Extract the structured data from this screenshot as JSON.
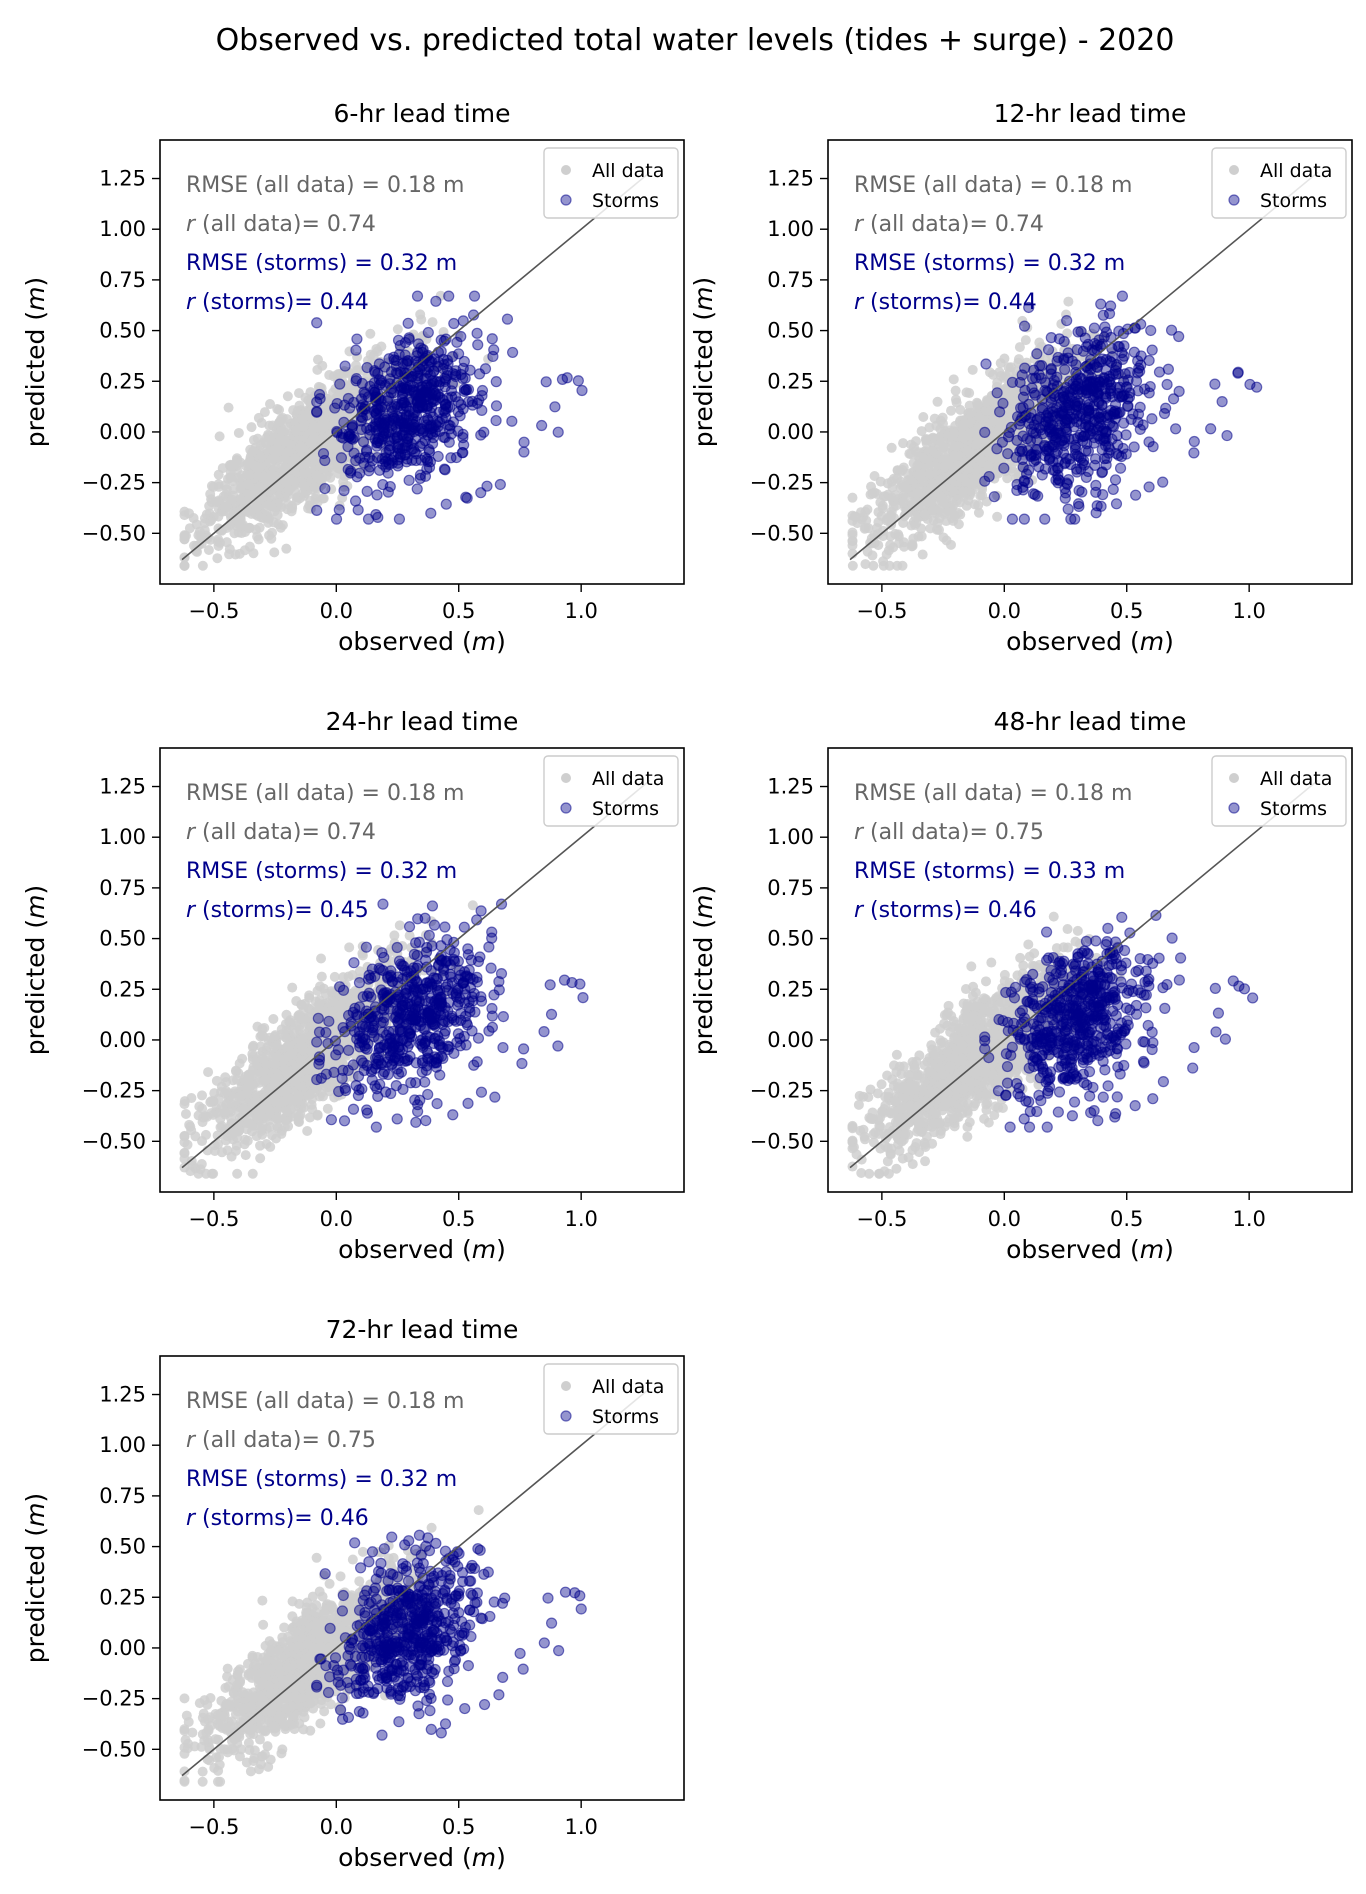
{
  "chart_data": {
    "type": "scatter",
    "title": "Observed vs. predicted total water levels (tides + surge) - 2020",
    "xlabel": "observed (m)",
    "ylabel": "predicted (m)",
    "xlim": [
      -0.72,
      1.42
    ],
    "ylim": [
      -0.75,
      1.44
    ],
    "xticks": [
      "−0.5",
      "0.0",
      "0.5",
      "1.0"
    ],
    "xtick_values": [
      -0.5,
      0.0,
      0.5,
      1.0
    ],
    "yticks": [
      "−0.50",
      "−0.25",
      "0.00",
      "0.25",
      "0.50",
      "0.75",
      "1.00",
      "1.25"
    ],
    "ytick_values": [
      -0.5,
      -0.25,
      0.0,
      0.25,
      0.5,
      0.75,
      1.0,
      1.25
    ],
    "grid": false,
    "legend_position": "upper-right",
    "reference_line": {
      "x": [
        -0.63,
        1.28
      ],
      "y": [
        -0.63,
        1.28
      ]
    },
    "series": [
      {
        "name": "All data",
        "color": "#cfcfcf"
      },
      {
        "name": "Storms",
        "color": "#00008b"
      }
    ],
    "panels": [
      {
        "title": "6-hr lead time",
        "rmse_all": "RMSE (all data) = 0.18 m",
        "r_all": "(all data)= 0.74",
        "rmse_storms": "RMSE (storms) = 0.32 m",
        "r_storms": "(storms)= 0.44",
        "seed": 11
      },
      {
        "title": "12-hr lead time",
        "rmse_all": "RMSE (all data) = 0.18 m",
        "r_all": "(all data)= 0.74",
        "rmse_storms": "RMSE (storms) = 0.32 m",
        "r_storms": "(storms)= 0.44",
        "seed": 23
      },
      {
        "title": "24-hr lead time",
        "rmse_all": "RMSE (all data) = 0.18 m",
        "r_all": "(all data)= 0.74",
        "rmse_storms": "RMSE (storms) = 0.32 m",
        "r_storms": "(storms)= 0.45",
        "seed": 37
      },
      {
        "title": "48-hr lead time",
        "rmse_all": "RMSE (all data) = 0.18 m",
        "r_all": "(all data)= 0.75",
        "rmse_storms": "RMSE (storms) = 0.33 m",
        "r_storms": "(storms)= 0.46",
        "seed": 41
      },
      {
        "title": "72-hr lead time",
        "rmse_all": "RMSE (all data) = 0.18 m",
        "r_all": "(all data)= 0.75",
        "rmse_storms": "RMSE (storms) = 0.32 m",
        "r_storms": "(storms)= 0.46",
        "seed": 59
      }
    ],
    "outlier_points": [
      [
        0.86,
        0.25
      ],
      [
        0.88,
        0.13
      ],
      [
        0.93,
        0.27
      ],
      [
        0.96,
        0.28
      ],
      [
        0.99,
        0.26
      ],
      [
        1.01,
        0.21
      ],
      [
        0.85,
        0.03
      ],
      [
        0.9,
        -0.01
      ],
      [
        0.77,
        -0.05
      ],
      [
        0.76,
        -0.12
      ],
      [
        0.6,
        -0.27
      ],
      [
        0.65,
        -0.24
      ],
      [
        0.53,
        -0.31
      ],
      [
        0.45,
        -0.35
      ],
      [
        0.38,
        -0.4
      ]
    ]
  }
}
